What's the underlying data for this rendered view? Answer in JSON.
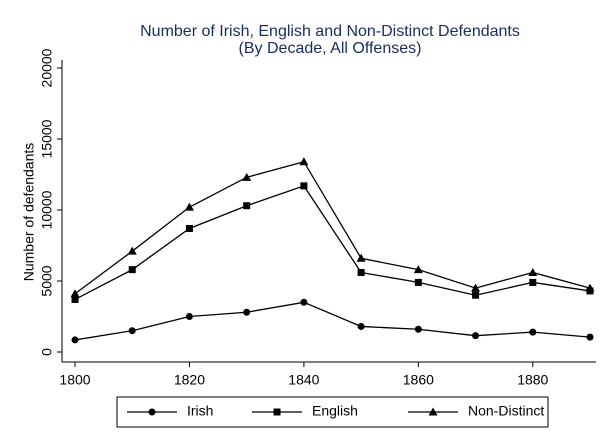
{
  "chart_data": {
    "type": "line",
    "title": "Number of Irish, English and Non-Distinct Defendants",
    "subtitle": "(By Decade, All Offenses)",
    "y_label": "Number of defendants",
    "x": [
      1800,
      1810,
      1820,
      1830,
      1840,
      1850,
      1860,
      1870,
      1880,
      1890
    ],
    "series": [
      {
        "name": "Irish",
        "color": "#000000",
        "marker": "circle",
        "values": [
          850,
          1500,
          2500,
          2800,
          3500,
          1800,
          1600,
          1150,
          1400,
          1050
        ]
      },
      {
        "name": "English",
        "color": "#000000",
        "marker": "square",
        "values": [
          3700,
          5800,
          8700,
          10300,
          11700,
          5600,
          4900,
          4000,
          4900,
          4300
        ]
      },
      {
        "name": "Non-Distinct",
        "color": "#000000",
        "marker": "triangle",
        "values": [
          4100,
          7100,
          10200,
          12300,
          13400,
          6600,
          5800,
          4500,
          5600,
          4500
        ]
      }
    ],
    "xlim": [
      1800,
      1890
    ],
    "xticks": [
      1800,
      1820,
      1840,
      1860,
      1880
    ],
    "ylim": [
      0,
      20000
    ],
    "yticks": [
      0,
      5000,
      10000,
      15000,
      20000
    ],
    "grid": false,
    "legend": "bottom"
  }
}
